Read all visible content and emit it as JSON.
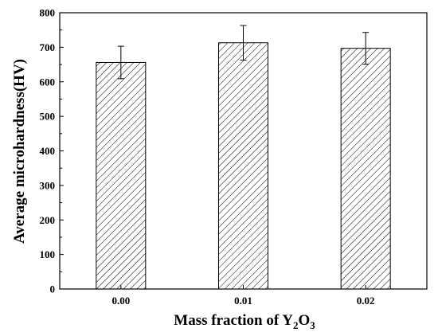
{
  "chart_data": {
    "type": "bar",
    "categories": [
      "0.00",
      "0.01",
      "0.02"
    ],
    "values": [
      656,
      713,
      697
    ],
    "error": [
      47,
      50,
      46
    ],
    "xlabel": {
      "main": "Mass fraction of Y",
      "sub1": "2",
      "mid": "O",
      "sub2": "3"
    },
    "ylabel": "Average microhardness(HV)",
    "ylim": [
      0,
      800
    ],
    "yticks": [
      0,
      100,
      200,
      300,
      400,
      500,
      600,
      700,
      800
    ],
    "bar_fill": "hatched",
    "bar_color": "#000000",
    "grid": false,
    "legend": "none"
  }
}
